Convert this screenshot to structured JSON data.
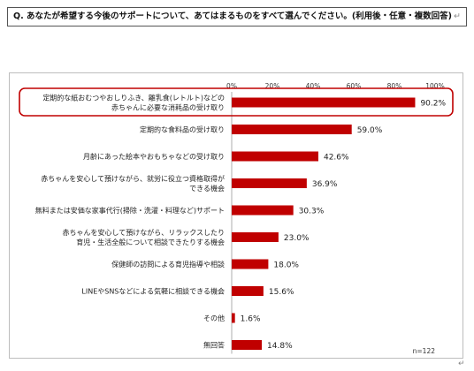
{
  "question": {
    "text": "Q. あなたが希望する今後のサポートについて、あてはまるものをすべて選んでください。(利用後・任意・複数回答)",
    "return_mark": "↵"
  },
  "chart_data": {
    "type": "bar",
    "orientation": "horizontal",
    "categories": [
      [
        "定期的な紙おむつやおしりふき、離乳食(レトルト)などの",
        "赤ちゃんに必要な消耗品の受け取り"
      ],
      [
        "定期的な食料品の受け取り"
      ],
      [
        "月齢にあった絵本やおもちゃなどの受け取り"
      ],
      [
        "赤ちゃんを安心して預けながら、就労に役立つ資格取得が",
        "できる機会"
      ],
      [
        "無料または安価な家事代行(掃除・洗濯・料理など)サポート"
      ],
      [
        "赤ちゃんを安心して預けながら、リラックスしたり",
        "育児・生活全般について相談できたりする機会"
      ],
      [
        "保健師の訪問による育児指導や相談"
      ],
      [
        "LINEやSNSなどによる気軽に相談できる機会"
      ],
      [
        "その他"
      ],
      [
        "無回答"
      ]
    ],
    "values": [
      90.2,
      59.0,
      42.6,
      36.9,
      30.3,
      23.0,
      18.0,
      15.6,
      1.6,
      14.8
    ],
    "value_labels": [
      "90.2%",
      "59.0%",
      "42.6%",
      "36.9%",
      "30.3%",
      "23.0%",
      "18.0%",
      "15.6%",
      "1.6%",
      "14.8%"
    ],
    "xticks": [
      "0%",
      "20%",
      "40%",
      "60%",
      "80%",
      "100%"
    ],
    "xlim": [
      0,
      100
    ],
    "bar_color": "#c00000",
    "highlight_color": "#c00000",
    "highlighted_index": 0,
    "sample_size": "n=122",
    "grid": false
  }
}
